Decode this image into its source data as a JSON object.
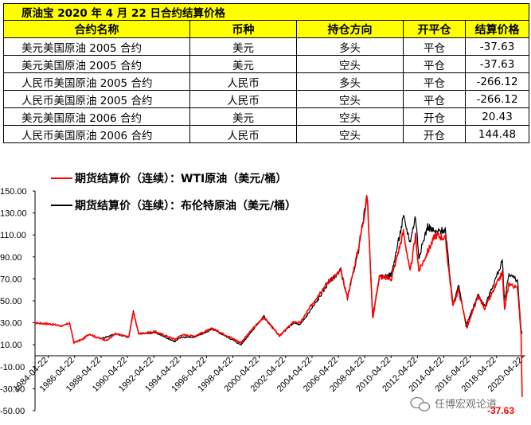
{
  "table": {
    "title": "原油宝 2020 年 4 月 22 日合约结算价格",
    "headers": [
      "合约名称",
      "币种",
      "持仓方向",
      "开平仓",
      "结算价格"
    ],
    "rows": [
      [
        "美元美国原油 2005 合约",
        "美元",
        "多头",
        "平仓",
        "-37.63"
      ],
      [
        "美元美国原油 2005 合约",
        "美元",
        "空头",
        "平仓",
        "-37.63"
      ],
      [
        "人民币美国原油 2005 合约",
        "人民币",
        "多头",
        "平仓",
        "-266.12"
      ],
      [
        "人民币美国原油 2005 合约",
        "人民币",
        "空头",
        "平仓",
        "-266.12"
      ],
      [
        "美元美国原油 2006 合约",
        "美元",
        "空头",
        "开仓",
        "20.43"
      ],
      [
        "人民币美国原油 2006 合约",
        "人民币",
        "空头",
        "开仓",
        "144.48"
      ]
    ]
  },
  "chart_data": {
    "type": "line",
    "title": "",
    "xlabel": "",
    "ylabel": "",
    "ylim": [
      -50,
      150
    ],
    "yticks": [
      "150.00",
      "130.00",
      "110.00",
      "90.00",
      "70.00",
      "50.00",
      "30.00",
      "10.00",
      "-10.00",
      "-30.00",
      "-50.00"
    ],
    "xticks": [
      "1984-04-22",
      "1986-04-22",
      "1988-04-22",
      "1990-04-22",
      "1992-04-22",
      "1994-04-22",
      "1996-04-22",
      "1998-04-22",
      "2000-04-22",
      "2002-04-22",
      "2004-04-22",
      "2006-04-22",
      "2008-04-22",
      "2010-04-22",
      "2012-04-22",
      "2014-04-22",
      "2016-04-22",
      "2018-04-22",
      "2020-04-22"
    ],
    "grid": false,
    "legend_position": "top-left",
    "annotation": "-37.63",
    "series": [
      {
        "name": "期货结算价（连续）：WTI原油（美元/桶）",
        "color": "#FF0000",
        "points": [
          [
            "1983-04",
            30
          ],
          [
            "1984-06",
            29
          ],
          [
            "1985-06",
            27
          ],
          [
            "1985-12",
            30
          ],
          [
            "1986-04",
            12
          ],
          [
            "1986-12",
            15
          ],
          [
            "1987-06",
            20
          ],
          [
            "1987-12",
            17
          ],
          [
            "1988-10",
            14
          ],
          [
            "1989-06",
            20
          ],
          [
            "1990-06",
            17
          ],
          [
            "1990-10",
            40
          ],
          [
            "1991-03",
            20
          ],
          [
            "1992-06",
            22
          ],
          [
            "1993-12",
            15
          ],
          [
            "1994-06",
            19
          ],
          [
            "1995-06",
            18
          ],
          [
            "1996-10",
            25
          ],
          [
            "1997-12",
            18
          ],
          [
            "1998-12",
            12
          ],
          [
            "1999-12",
            26
          ],
          [
            "2000-09",
            35
          ],
          [
            "2001-11",
            18
          ],
          [
            "2002-12",
            31
          ],
          [
            "2003-06",
            30
          ],
          [
            "2004-10",
            55
          ],
          [
            "2005-08",
            68
          ],
          [
            "2006-07",
            77
          ],
          [
            "2007-01",
            53
          ],
          [
            "2007-11",
            98
          ],
          [
            "2008-07",
            145
          ],
          [
            "2008-12",
            34
          ],
          [
            "2009-06",
            72
          ],
          [
            "2010-05",
            70
          ],
          [
            "2011-04",
            113
          ],
          [
            "2011-10",
            76
          ],
          [
            "2012-03",
            109
          ],
          [
            "2012-06",
            77
          ],
          [
            "2013-09",
            110
          ],
          [
            "2014-06",
            107
          ],
          [
            "2015-01",
            45
          ],
          [
            "2015-06",
            60
          ],
          [
            "2016-02",
            26
          ],
          [
            "2016-12",
            54
          ],
          [
            "2017-06",
            43
          ],
          [
            "2018-10",
            76
          ],
          [
            "2018-12",
            42
          ],
          [
            "2019-04",
            66
          ],
          [
            "2019-12",
            61
          ],
          [
            "2020-03",
            20
          ],
          [
            "2020-04",
            -37.63
          ]
        ]
      },
      {
        "name": "期货结算价（连续）：布伦特原油（美元/桶）",
        "color": "#000000",
        "points": [
          [
            "1988-06",
            16
          ],
          [
            "1989-06",
            20
          ],
          [
            "1990-06",
            17
          ],
          [
            "1990-10",
            41
          ],
          [
            "1991-03",
            20
          ],
          [
            "1992-06",
            21
          ],
          [
            "1993-12",
            13
          ],
          [
            "1994-06",
            17
          ],
          [
            "1995-06",
            17
          ],
          [
            "1996-10",
            24
          ],
          [
            "1997-12",
            17
          ],
          [
            "1998-12",
            10
          ],
          [
            "1999-12",
            25
          ],
          [
            "2000-09",
            36
          ],
          [
            "2001-11",
            18
          ],
          [
            "2002-12",
            30
          ],
          [
            "2003-06",
            28
          ],
          [
            "2004-10",
            51
          ],
          [
            "2005-08",
            67
          ],
          [
            "2006-07",
            78
          ],
          [
            "2007-01",
            52
          ],
          [
            "2007-11",
            96
          ],
          [
            "2008-07",
            146
          ],
          [
            "2008-12",
            36
          ],
          [
            "2009-06",
            71
          ],
          [
            "2010-05",
            74
          ],
          [
            "2011-04",
            126
          ],
          [
            "2011-10",
            104
          ],
          [
            "2012-03",
            127
          ],
          [
            "2012-06",
            90
          ],
          [
            "2013-02",
            118
          ],
          [
            "2013-09",
            112
          ],
          [
            "2014-06",
            115
          ],
          [
            "2015-01",
            47
          ],
          [
            "2015-06",
            65
          ],
          [
            "2016-01",
            27
          ],
          [
            "2016-12",
            56
          ],
          [
            "2017-06",
            45
          ],
          [
            "2018-10",
            86
          ],
          [
            "2018-12",
            50
          ],
          [
            "2019-04",
            75
          ],
          [
            "2019-12",
            68
          ],
          [
            "2020-03",
            23
          ],
          [
            "2020-04",
            20
          ]
        ]
      }
    ]
  },
  "watermark": "任博宏观论道",
  "watermark_icon": "wechat-icon"
}
